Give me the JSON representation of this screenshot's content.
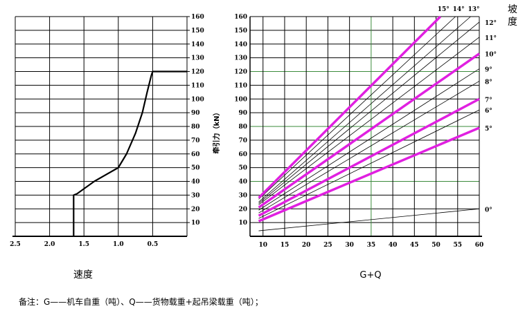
{
  "chart_data": [
    {
      "type": "line",
      "xlabel": "速度",
      "x_reversed": true,
      "xlim": [
        2.5,
        0.0
      ],
      "ylim": [
        0,
        160
      ],
      "x_ticks": [
        "2.5",
        "2.0",
        "1.5",
        "1.0",
        "0.5"
      ],
      "x_tick_values": [
        2.5,
        2.0,
        1.5,
        1.0,
        0.5
      ],
      "y_ticks": [
        "10",
        "20",
        "30",
        "40",
        "50",
        "60",
        "70",
        "80",
        "90",
        "100",
        "110",
        "120",
        "130",
        "140",
        "150",
        "160"
      ],
      "y_tick_values": [
        10,
        20,
        30,
        40,
        50,
        60,
        70,
        80,
        90,
        100,
        110,
        120,
        130,
        140,
        150,
        160
      ],
      "grid": true,
      "series": [
        {
          "x": [
            1.65,
            1.65,
            1.6,
            1.35,
            1.0,
            0.88,
            0.75,
            0.65,
            0.58,
            0.52,
            0.5,
            0.0
          ],
          "y": [
            0,
            30,
            31,
            40,
            50,
            60,
            75,
            90,
            105,
            117,
            120,
            120
          ]
        }
      ]
    },
    {
      "type": "line",
      "xlabel": "G+Q",
      "ylabel": "牵引力（kN）",
      "legend_title": "坡度",
      "xlim": [
        7,
        60
      ],
      "ylim": [
        0,
        160
      ],
      "x_ticks": [
        "10",
        "15",
        "20",
        "25",
        "30",
        "35",
        "40",
        "45",
        "50",
        "55",
        "60"
      ],
      "x_tick_values": [
        10,
        15,
        20,
        25,
        30,
        35,
        40,
        45,
        50,
        55,
        60
      ],
      "y_ticks": [
        "10",
        "20",
        "30",
        "40",
        "50",
        "60",
        "70",
        "80",
        "90",
        "100",
        "110",
        "120",
        "130",
        "140",
        "150",
        "160"
      ],
      "y_tick_values": [
        10,
        20,
        30,
        40,
        50,
        60,
        70,
        80,
        90,
        100,
        110,
        120,
        130,
        140,
        150,
        160
      ],
      "grid": true,
      "series": [
        {
          "name": "0°",
          "x": [
            9,
            60
          ],
          "y": [
            4,
            20
          ],
          "highlight": false
        },
        {
          "name": "5°",
          "x": [
            9,
            60
          ],
          "y": [
            11,
            79
          ],
          "highlight": true
        },
        {
          "name": "6°",
          "x": [
            9,
            60
          ],
          "y": [
            13,
            92
          ],
          "highlight": false
        },
        {
          "name": "7°",
          "x": [
            9,
            60
          ],
          "y": [
            15,
            100
          ],
          "highlight": true
        },
        {
          "name": "8°",
          "x": [
            9,
            60
          ],
          "y": [
            17,
            113
          ],
          "highlight": false
        },
        {
          "name": "9°",
          "x": [
            9,
            60
          ],
          "y": [
            19,
            122
          ],
          "highlight": false
        },
        {
          "name": "10°",
          "x": [
            9,
            60
          ],
          "y": [
            21,
            133
          ],
          "highlight": true
        },
        {
          "name": "11°",
          "x": [
            9,
            60
          ],
          "y": [
            23,
            145
          ],
          "highlight": false
        },
        {
          "name": "12°",
          "x": [
            9,
            60
          ],
          "y": [
            24,
            156
          ],
          "highlight": false
        },
        {
          "name": "13°",
          "x": [
            9,
            58
          ],
          "y": [
            25,
            160
          ],
          "highlight": false
        },
        {
          "name": "14°",
          "x": [
            9,
            54.5
          ],
          "y": [
            27,
            160
          ],
          "highlight": false
        },
        {
          "name": "15°",
          "x": [
            9,
            51
          ],
          "y": [
            28,
            160
          ],
          "highlight": true
        }
      ]
    }
  ],
  "note": "备注：G——机车自重（吨）、Q——货物载重+起吊梁载重（吨）；",
  "colors": {
    "highlight": "#e020e0",
    "line": "#000000",
    "grid": "#000000",
    "grid_green": "#3a8a3a"
  }
}
